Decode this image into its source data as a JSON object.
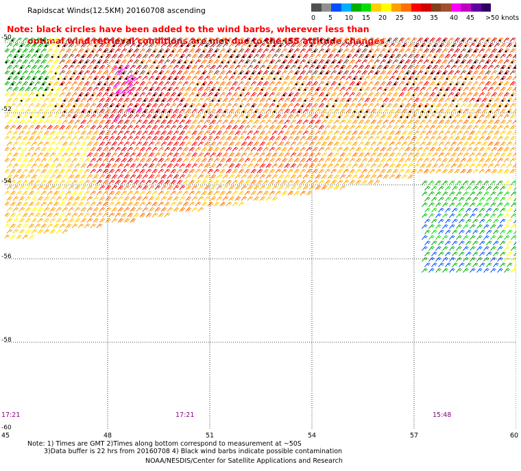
{
  "title": "Rapidscat Winds(12.5KM) 20160708 ascending",
  "note_line1": "Note: black circles have been added to the wind barbs, wherever less than",
  "note_line2": "optimal wind retrieval conditions are met due to the ISS attitude changes",
  "colorbar": {
    "colors": [
      "#505050",
      "#909090",
      "#0050ff",
      "#00b0ff",
      "#00b000",
      "#00e000",
      "#ffd000",
      "#ffff00",
      "#ffa000",
      "#ff7000",
      "#ff0000",
      "#d00000",
      "#804020",
      "#a05030",
      "#ff00ff",
      "#c000c0",
      "#6000a0",
      "#300060"
    ],
    "labels": [
      "0",
      "5",
      "10",
      "15",
      "20",
      "25",
      "30",
      "35",
      "40",
      "45",
      ">50 knots"
    ]
  },
  "y_labels": [
    "-50",
    "-52",
    "-54",
    "-56",
    "-58",
    "-60"
  ],
  "x_labels": [
    "45",
    "48",
    "51",
    "54",
    "57",
    "60"
  ],
  "times": [
    "17:21",
    "17:21",
    "15:48"
  ],
  "footnote_line1": "Note: 1) Times are GMT 2)Times along bottom correspond to measurement at ~50S",
  "footnote_line2": "3)Data buffer is 22 hrs from 20160708 4) Black wind barbs indicate possible contamination",
  "credit": "NOAA/NESDIS/Center for Satellite Applications and Research"
}
